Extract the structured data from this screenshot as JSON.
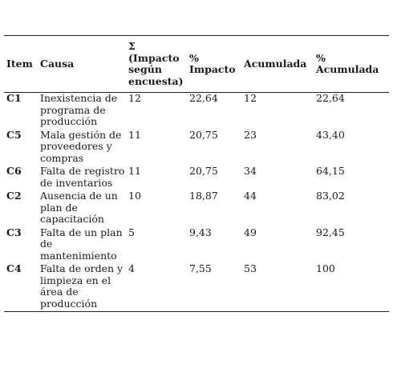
{
  "table": {
    "headers": {
      "item": "Item",
      "causa": "Causa",
      "sigma": "Σ (Impacto según encuesta)",
      "impacto": "% Impacto",
      "acumulada": "Acumulada",
      "pct_acumulada": "% Acumulada"
    },
    "rows": [
      {
        "item": "C1",
        "causa": "Inexistencia de programa de producción",
        "sigma": "12",
        "impacto": "22,64",
        "acumulada": "12",
        "pct_acumulada": "22,64"
      },
      {
        "item": "C5",
        "causa": "Mala gestión de proveedores y compras",
        "sigma": "11",
        "impacto": "20,75",
        "acumulada": "23",
        "pct_acumulada": "43,40"
      },
      {
        "item": "C6",
        "causa": "Falta de registro de inventarios",
        "sigma": "11",
        "impacto": "20,75",
        "acumulada": "34",
        "pct_acumulada": "64,15"
      },
      {
        "item": "C2",
        "causa": "Ausencia de un plan de capacitación",
        "sigma": "10",
        "impacto": "18,87",
        "acumulada": "44",
        "pct_acumulada": "83,02"
      },
      {
        "item": "C3",
        "causa": "Falta de un plan de mantenimiento",
        "sigma": "5",
        "impacto": "9,43",
        "acumulada": "49",
        "pct_acumulada": "92,45"
      },
      {
        "item": "C4",
        "causa": "Falta de orden y limpieza en el área de producción",
        "sigma": "4",
        "impacto": "7,55",
        "acumulada": "53",
        "pct_acumulada": "100"
      }
    ]
  }
}
